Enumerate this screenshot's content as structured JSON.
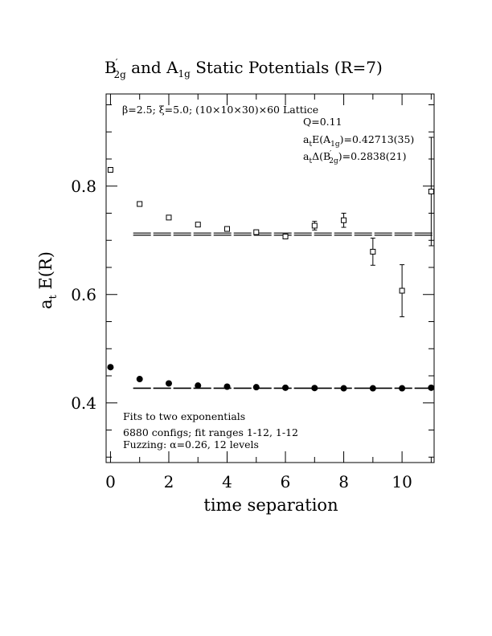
{
  "chart_data": {
    "type": "scatter",
    "title": {
      "pre": "B",
      "pre_sup": "′",
      "pre_sub": "2g",
      "mid": " and A",
      "mid_sub": "1g",
      "post": " Static Potentials (R=7)"
    },
    "xlabel": "time separation",
    "ylabel": {
      "main": "a",
      "sub": "t",
      "rest": " E(R)"
    },
    "xlim": [
      -0.15,
      11.1
    ],
    "ylim": [
      0.29,
      0.97
    ],
    "xticks": [
      0,
      2,
      4,
      6,
      8,
      10
    ],
    "xtick_labels": [
      "0",
      "2",
      "4",
      "6",
      "8",
      "10"
    ],
    "yticks": [
      0.4,
      0.6,
      0.8
    ],
    "ytick_labels": [
      "0.4",
      "0.6",
      "0.8"
    ],
    "series": [
      {
        "marker": "open-square",
        "x": [
          0,
          1,
          2,
          3,
          4,
          5,
          6,
          7,
          8,
          9,
          10,
          11
        ],
        "y": [
          0.83,
          0.767,
          0.742,
          0.729,
          0.721,
          0.715,
          0.707,
          0.727,
          0.737,
          0.679,
          0.607,
          0.79
        ],
        "err": [
          0.002,
          0.002,
          0.002,
          0.003,
          0.003,
          0.004,
          0.004,
          0.008,
          0.013,
          0.025,
          0.048,
          0.1
        ]
      },
      {
        "marker": "filled-circle",
        "x": [
          0,
          1,
          2,
          3,
          4,
          5,
          6,
          7,
          8,
          9,
          10,
          11
        ],
        "y": [
          0.466,
          0.444,
          0.436,
          0.432,
          0.43,
          0.429,
          0.428,
          0.4275,
          0.427,
          0.427,
          0.427,
          0.428
        ],
        "err": [
          0.0005,
          0.0005,
          0.0005,
          0.0005,
          0.0005,
          0.0005,
          0.0005,
          0.0005,
          0.0005,
          0.0005,
          0.0005,
          0.0008
        ]
      }
    ],
    "fits": [
      {
        "x_range": [
          1,
          11.1
        ],
        "y_band": [
          0.7094,
          0.7134
        ]
      },
      {
        "x_range": [
          1,
          11.1
        ],
        "y_band": [
          0.4268,
          0.4275
        ]
      }
    ],
    "grid": false
  },
  "annotations": {
    "top_line": {
      "pre": "β=2.5;  ξ=5.0;  (10×10×30)×60 Lattice"
    },
    "q_line": "Q=0.11",
    "energy_line": {
      "a": "a",
      "a_sub": "t",
      "mid": "E(A",
      "mid_sub": "1g",
      "post": ")=0.42713(35)"
    },
    "delta_line": {
      "a": "a",
      "a_sub": "t",
      "mid": "Δ(B",
      "mid_sup": "′",
      "mid_sub": "2g",
      "post": ")=0.2838(21)"
    },
    "fit_line_1": "Fits to two exponentials",
    "fit_line_2": "6880 configs; fit ranges 1-12, 1-12",
    "fit_line_3": "Fuzzing: α=0.26, 12 levels"
  }
}
